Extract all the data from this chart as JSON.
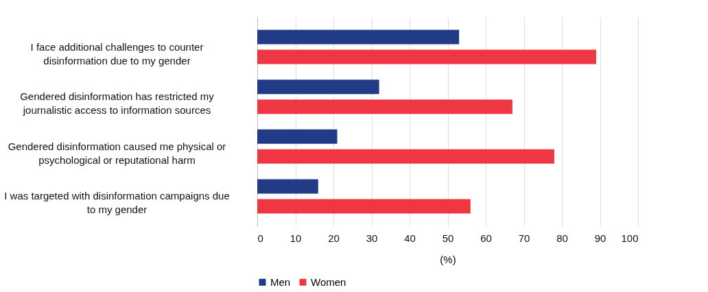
{
  "chart_data": {
    "type": "bar",
    "orientation": "horizontal",
    "xlabel": "(%)",
    "categories": [
      "I face additional challenges to counter disinformation due to my gender",
      "Gendered disinformation has restricted my journalistic access to information sources",
      "Gendered disinformation caused me physical or psychological or reputational harm",
      "I was targeted with disinformation campaigns due to my gender"
    ],
    "series": [
      {
        "name": "Men",
        "color": "#213b86",
        "values": [
          53,
          32,
          21,
          16
        ]
      },
      {
        "name": "Women",
        "color": "#ee3742",
        "values": [
          89,
          67,
          78,
          56
        ]
      }
    ],
    "xlim": [
      0,
      100
    ],
    "xticks": [
      0,
      10,
      20,
      30,
      40,
      50,
      60,
      70,
      80,
      90,
      100
    ],
    "grid": "x",
    "legend": "bottom"
  }
}
